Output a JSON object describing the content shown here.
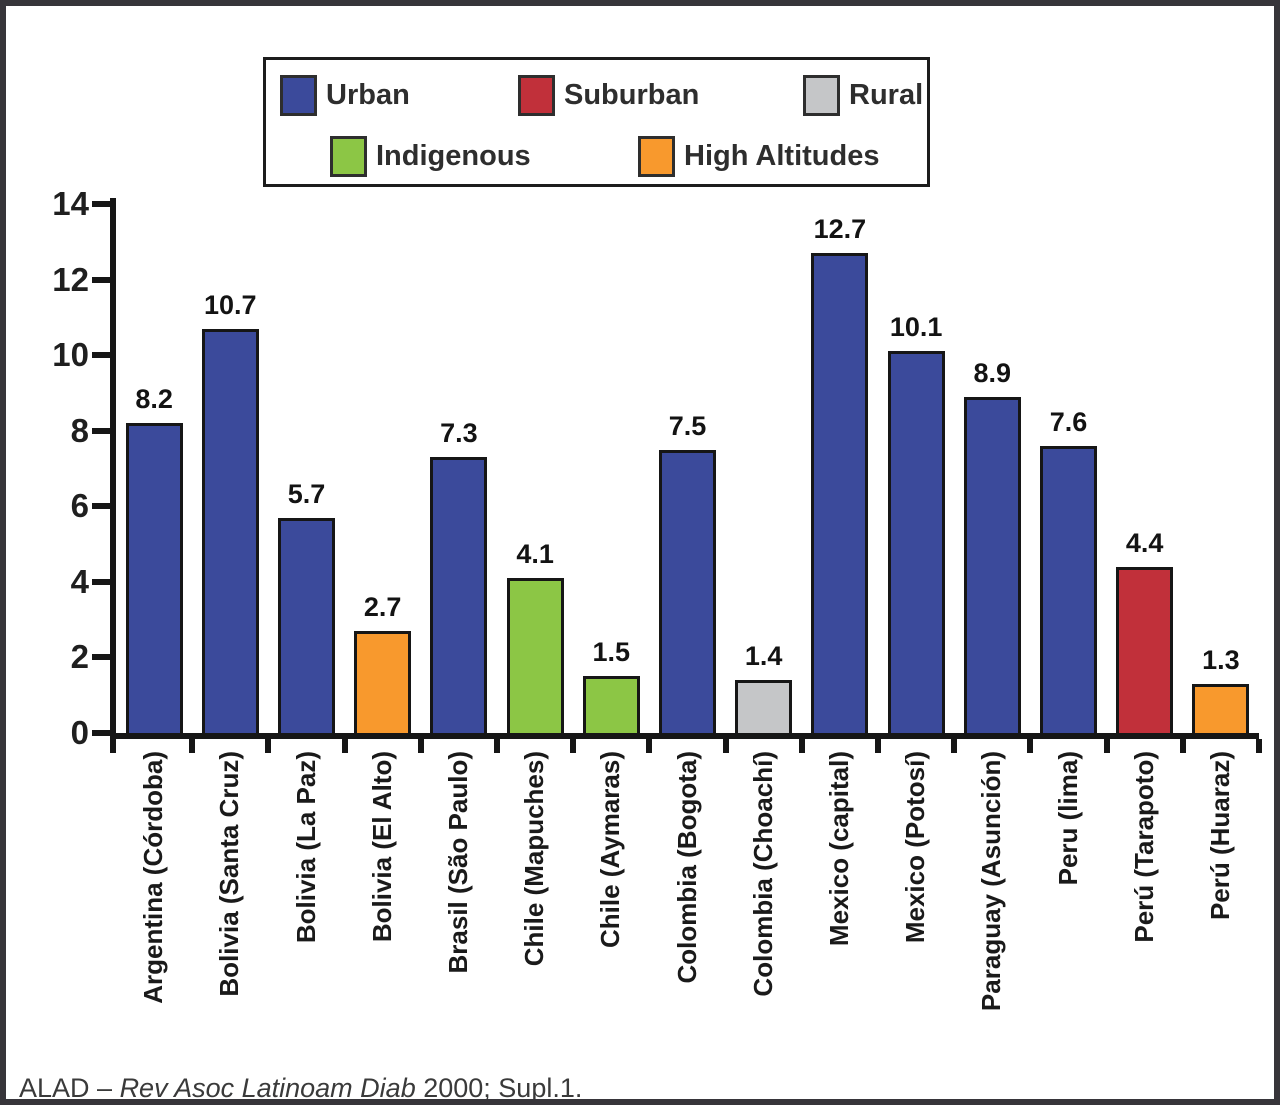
{
  "legend": {
    "items": [
      {
        "label": "Urban",
        "color": "#3B4A9B"
      },
      {
        "label": "Suburban",
        "color": "#C1303A"
      },
      {
        "label": "Rural",
        "color": "#C5C6C8"
      },
      {
        "label": "Indigenous",
        "color": "#8CC645"
      },
      {
        "label": "High Altitudes",
        "color": "#F8992D"
      }
    ]
  },
  "chart_data": {
    "type": "bar",
    "title": "",
    "xlabel": "",
    "ylabel": "",
    "ylim": [
      0,
      14
    ],
    "yticks": [
      0,
      2,
      4,
      6,
      8,
      10,
      12,
      14
    ],
    "grid": false,
    "legend_position": "top",
    "categories": [
      "Argentina (Córdoba)",
      "Bolivia (Santa Cruz)",
      "Bolivia (La Paz)",
      "Bolivia (El Alto)",
      "Brasil (São Paulo)",
      "Chile (Mapuches)",
      "Chile (Aymaras)",
      "Colombia (Bogota)",
      "Colombia (Choachí)",
      "Mexico (capital)",
      "Mexico (Potosí)",
      "Paraguay (Asunción)",
      "Peru (lima)",
      "Perú (Tarapoto)",
      "Perú (Huaraz)"
    ],
    "values": [
      8.2,
      10.7,
      5.7,
      2.7,
      7.3,
      4.1,
      1.5,
      7.5,
      1.4,
      12.7,
      10.1,
      8.9,
      7.6,
      4.4,
      1.3
    ],
    "value_labels": [
      "8.2",
      "10.7",
      "5.7",
      "2.7",
      "7.3",
      "4.1",
      "1.5",
      "7.5",
      "1.4",
      "12.7",
      "10.1",
      "8.9",
      "7.6",
      "4.4",
      "1.3"
    ],
    "bar_groups": [
      "Urban",
      "Urban",
      "Urban",
      "High Altitudes",
      "Urban",
      "Indigenous",
      "Indigenous",
      "Urban",
      "Rural",
      "Urban",
      "Urban",
      "Urban",
      "Urban",
      "Suburban",
      "High Altitudes"
    ],
    "colors": {
      "Urban": "#3B4A9B",
      "Suburban": "#C1303A",
      "Rural": "#C5C6C8",
      "Indigenous": "#8CC645",
      "High Altitudes": "#F8992D"
    }
  },
  "footer": {
    "source_prefix": "ALAD – ",
    "source_italic": "Rev Asoc Latinoam Diab",
    "source_suffix": " 2000; Supl.1."
  }
}
